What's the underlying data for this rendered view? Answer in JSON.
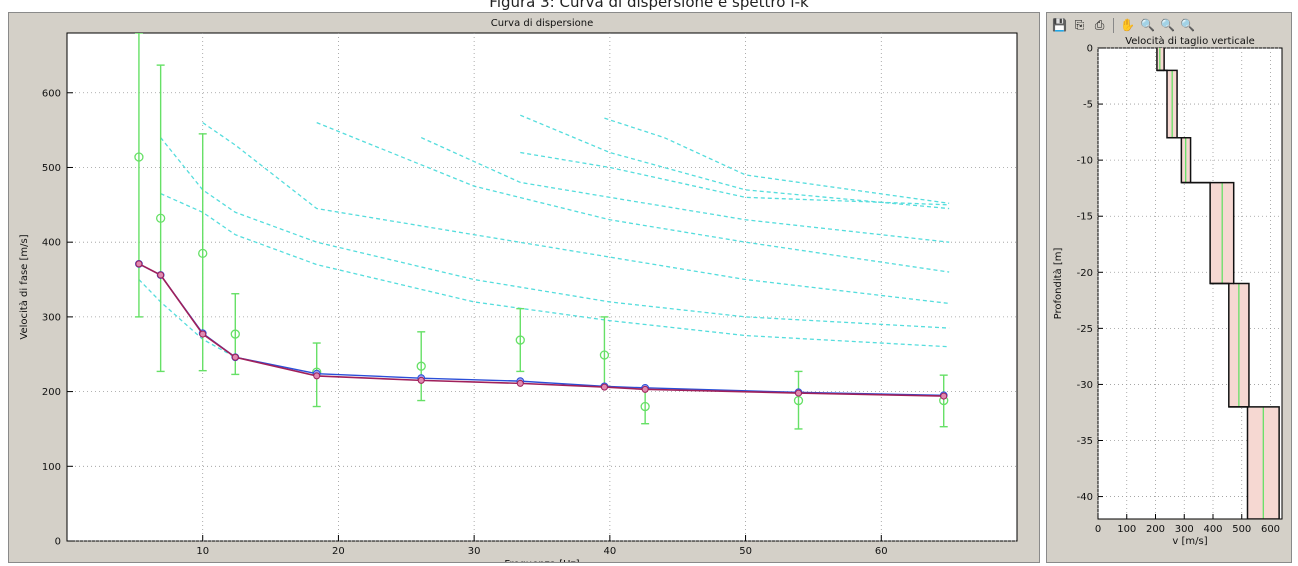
{
  "caption": "Figura 3: Curva di dispersione e spettro f-k",
  "toolbar": [
    {
      "name": "save-icon",
      "glyph": "💾"
    },
    {
      "name": "copy-icon",
      "glyph": "⎘"
    },
    {
      "name": "print-icon",
      "glyph": "⎙"
    },
    {
      "name": "pan-hand-icon",
      "glyph": "✋"
    },
    {
      "name": "zoom-icon",
      "glyph": "🔍"
    },
    {
      "name": "zoom-in-icon",
      "glyph": "🔍"
    },
    {
      "name": "zoom-fit-icon",
      "glyph": "🔍"
    }
  ],
  "colors": {
    "observed": "#66e066",
    "theoretical": "#2b4fd8",
    "model": "#a0205a",
    "modes": "#55dddd",
    "profile": "#111111",
    "band": "#f6d8d2"
  },
  "chart_data": [
    {
      "type": "line",
      "title": "Curva di dispersione",
      "xlabel": "Frequenza [Hz]",
      "ylabel": "Velocità di fase  [m/s]",
      "xlim": [
        0,
        70
      ],
      "ylim": [
        0,
        680
      ],
      "xticks": [
        10,
        20,
        30,
        40,
        50,
        60
      ],
      "yticks": [
        0,
        100,
        200,
        300,
        400,
        500,
        600
      ],
      "grid": true,
      "observed_points": {
        "x": [
          5.3,
          6.9,
          10.0,
          12.4,
          18.4,
          26.1,
          33.4,
          39.6,
          42.6,
          53.9,
          64.6
        ],
        "y": [
          514,
          432,
          385,
          277,
          226,
          234,
          269,
          249,
          180,
          188,
          188
        ],
        "err_low": [
          300,
          227,
          228,
          223,
          180,
          188,
          227,
          208,
          157,
          150,
          153
        ],
        "err_high": [
          680,
          637,
          545,
          331,
          265,
          280,
          311,
          300,
          203,
          227,
          222
        ]
      },
      "theoretical_curve": {
        "x": [
          5.3,
          6.9,
          10.0,
          12.4,
          18.4,
          26.1,
          33.4,
          39.6,
          42.6,
          53.9,
          64.6
        ],
        "y": [
          371,
          356,
          278,
          246,
          224,
          218,
          214,
          207,
          205,
          199,
          195
        ]
      },
      "model_curve": {
        "x": [
          5.3,
          6.9,
          10.0,
          12.4,
          18.4,
          26.1,
          33.4,
          39.6,
          42.6,
          53.9,
          64.6
        ],
        "y": [
          371,
          356,
          277,
          246,
          221,
          215,
          211,
          206,
          203,
          198,
          194
        ]
      },
      "higher_modes": [
        {
          "x": [
            5.3,
            6.9,
            10.0,
            12.4
          ],
          "y": [
            350,
            320,
            270,
            246
          ]
        },
        {
          "x": [
            6.9,
            10.0,
            12.4,
            18.4,
            30,
            40,
            50,
            65
          ],
          "y": [
            465,
            440,
            410,
            370,
            320,
            295,
            275,
            260
          ]
        },
        {
          "x": [
            6.9,
            10.0,
            12.4,
            18.4,
            30,
            40,
            50,
            65
          ],
          "y": [
            540,
            470,
            440,
            400,
            350,
            320,
            300,
            285
          ]
        },
        {
          "x": [
            10.0,
            12.4,
            18.4,
            30,
            40,
            50,
            65
          ],
          "y": [
            560,
            530,
            445,
            410,
            380,
            350,
            318
          ]
        },
        {
          "x": [
            18.4,
            30,
            40,
            50,
            65
          ],
          "y": [
            560,
            475,
            430,
            400,
            360
          ]
        },
        {
          "x": [
            26.1,
            33.4,
            40,
            50,
            65
          ],
          "y": [
            540,
            480,
            460,
            430,
            400
          ]
        },
        {
          "x": [
            33.4,
            40,
            50,
            65
          ],
          "y": [
            570,
            520,
            470,
            445
          ]
        },
        {
          "x": [
            33.4,
            40,
            50,
            65
          ],
          "y": [
            520,
            500,
            460,
            450
          ]
        },
        {
          "x": [
            39.6,
            44,
            50,
            65
          ],
          "y": [
            566,
            540,
            490,
            452
          ]
        }
      ]
    },
    {
      "type": "line",
      "title": "Velocità di taglio verticale",
      "xlabel": "v [m/s]",
      "ylabel": "Profondità [m]",
      "xlim": [
        0,
        640
      ],
      "ylim": [
        -42,
        0
      ],
      "xticks": [
        0,
        100,
        200,
        300,
        400,
        500,
        600
      ],
      "yticks": [
        0,
        -5,
        -10,
        -15,
        -20,
        -25,
        -30,
        -35,
        -40
      ],
      "grid": true,
      "layers": [
        {
          "top": 0,
          "bottom": -2,
          "vs": 215,
          "vmin": 205,
          "vmax": 230
        },
        {
          "top": -2,
          "bottom": -8,
          "vs": 258,
          "vmin": 240,
          "vmax": 275
        },
        {
          "top": -8,
          "bottom": -12,
          "vs": 305,
          "vmin": 290,
          "vmax": 322
        },
        {
          "top": -12,
          "bottom": -21,
          "vs": 432,
          "vmin": 390,
          "vmax": 472
        },
        {
          "top": -21,
          "bottom": -32,
          "vs": 490,
          "vmin": 455,
          "vmax": 525
        },
        {
          "top": -32,
          "bottom": -42,
          "vs": 575,
          "vmin": 520,
          "vmax": 630
        }
      ]
    }
  ]
}
